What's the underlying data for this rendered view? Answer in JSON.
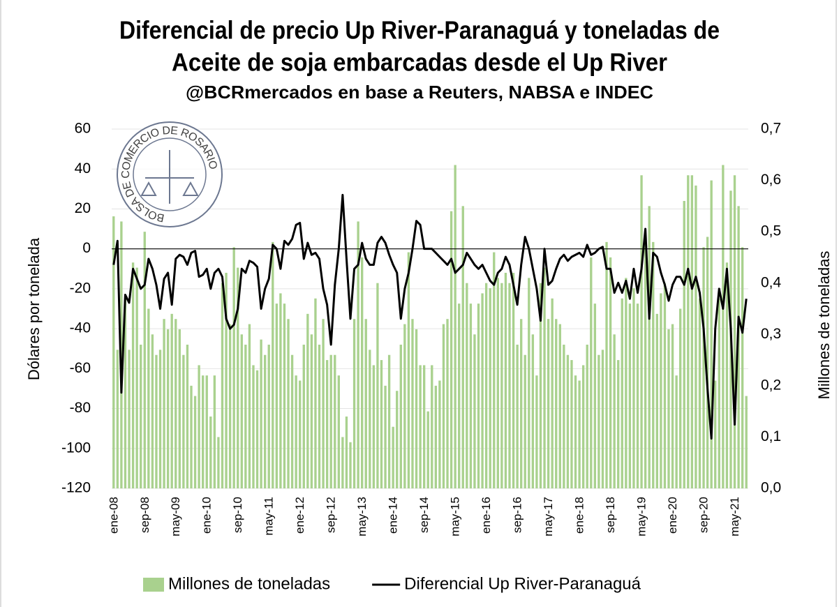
{
  "chart_data": {
    "type": "bar-line",
    "title": [
      "Diferencial de precio Up River-Paranaguá y toneladas de",
      "Aceite de soja embarcadas desde el Up River"
    ],
    "subtitle": "@BCRmercados en base a Reuters, NABSA e INDEC",
    "logo": "BOLSA DE COMERCIO DE ROSARIO",
    "ylabel": "Dólares por tonelada",
    "y2label": "Millones de toneladas",
    "categories": [
      "ene-08",
      null,
      null,
      null,
      null,
      null,
      null,
      null,
      "sep-08",
      null,
      null,
      null,
      null,
      null,
      null,
      null,
      "may-09",
      null,
      null,
      null,
      null,
      null,
      null,
      null,
      "ene-10",
      null,
      null,
      null,
      null,
      null,
      null,
      null,
      "sep-10",
      null,
      null,
      null,
      null,
      null,
      null,
      null,
      "may-11",
      null,
      null,
      null,
      null,
      null,
      null,
      null,
      "ene-12",
      null,
      null,
      null,
      null,
      null,
      null,
      null,
      "sep-12",
      null,
      null,
      null,
      null,
      null,
      null,
      null,
      "may-13",
      null,
      null,
      null,
      null,
      null,
      null,
      null,
      "ene-14",
      null,
      null,
      null,
      null,
      null,
      null,
      null,
      "sep-14",
      null,
      null,
      null,
      null,
      null,
      null,
      null,
      "may-15",
      null,
      null,
      null,
      null,
      null,
      null,
      null,
      "ene-16",
      null,
      null,
      null,
      null,
      null,
      null,
      null,
      "sep-16",
      null,
      null,
      null,
      null,
      null,
      null,
      null,
      "may-17",
      null,
      null,
      null,
      null,
      null,
      null,
      null,
      "ene-18",
      null,
      null,
      null,
      null,
      null,
      null,
      null,
      "sep-18",
      null,
      null,
      null,
      null,
      null,
      null,
      null,
      "may-19",
      null,
      null,
      null,
      null,
      null,
      null,
      null,
      "ene-20",
      null,
      null,
      null,
      null,
      null,
      null,
      null,
      "sep-20",
      null,
      null,
      null,
      null,
      null,
      null,
      null,
      "may-21",
      null,
      null,
      null
    ],
    "series": [
      {
        "name": "Millones de toneladas",
        "type": "bar",
        "axis": "y2",
        "color": "#a9d18e",
        "values": [
          0.53,
          0.27,
          0.52,
          0.37,
          0.27,
          0.44,
          0.43,
          0.28,
          0.5,
          0.35,
          0.3,
          0.26,
          0.27,
          0.33,
          0.31,
          0.34,
          0.33,
          0.31,
          0.26,
          0.28,
          0.2,
          0.18,
          0.24,
          0.22,
          0.22,
          0.14,
          0.22,
          0.1,
          0.4,
          0.42,
          0.32,
          0.47,
          0.43,
          0.3,
          0.28,
          0.32,
          0.24,
          0.23,
          0.29,
          0.26,
          0.28,
          0.48,
          0.36,
          0.38,
          0.36,
          0.33,
          0.26,
          0.22,
          0.21,
          0.28,
          0.34,
          0.3,
          0.37,
          0.28,
          0.33,
          0.25,
          0.26,
          0.26,
          0.22,
          0.1,
          0.14,
          0.09,
          0.33,
          0.52,
          0.45,
          0.33,
          0.27,
          0.24,
          0.4,
          0.25,
          0.2,
          0.26,
          0.12,
          0.19,
          0.28,
          0.32,
          0.46,
          0.33,
          0.31,
          0.24,
          0.24,
          0.15,
          0.24,
          0.2,
          0.21,
          0.32,
          0.33,
          0.54,
          0.63,
          0.36,
          0.55,
          0.4,
          0.36,
          0.3,
          0.36,
          0.38,
          0.4,
          0.39,
          0.46,
          0.41,
          0.4,
          0.42,
          0.4,
          0.42,
          0.28,
          0.33,
          0.26,
          0.41,
          0.3,
          0.22,
          0.4,
          0.43,
          0.33,
          0.37,
          0.33,
          0.32,
          0.28,
          0.26,
          0.25,
          0.22,
          0.21,
          0.24,
          0.28,
          0.45,
          0.36,
          0.26,
          0.27,
          0.48,
          0.45,
          0.3,
          0.25,
          0.37,
          0.41,
          0.36,
          0.39,
          0.36,
          0.61,
          0.48,
          0.55,
          0.48,
          0.34,
          0.38,
          0.4,
          0.31,
          0.32,
          0.22,
          0.35,
          0.56,
          0.61,
          0.61,
          0.59,
          0.37,
          0.47,
          0.49,
          0.6,
          0.21,
          0.37,
          0.63,
          0.44,
          0.58,
          0.61,
          0.55,
          0.47,
          0.18
        ]
      },
      {
        "name": "Diferencial Up River-Paranaguá",
        "type": "line",
        "axis": "y",
        "color": "#000000",
        "values": [
          -8,
          4,
          -72,
          -23,
          -27,
          -10,
          -15,
          -20,
          -18,
          -5,
          -10,
          -18,
          -30,
          -15,
          -12,
          -28,
          -5,
          -3,
          -4,
          -8,
          -2,
          -1,
          -14,
          -13,
          -10,
          -20,
          -12,
          -10,
          -14,
          -35,
          -40,
          -38,
          -30,
          -10,
          -12,
          -6,
          -7,
          -9,
          -30,
          -20,
          -15,
          2,
          0,
          -10,
          4,
          2,
          5,
          12,
          13,
          -5,
          3,
          -3,
          -2,
          -5,
          -20,
          -28,
          -48,
          -18,
          0,
          27,
          -5,
          -35,
          -10,
          -8,
          3,
          -5,
          -8,
          -8,
          3,
          6,
          3,
          -3,
          -8,
          -12,
          -35,
          -20,
          -12,
          0,
          14,
          12,
          0,
          0,
          0,
          -2,
          -4,
          -6,
          -8,
          -5,
          -12,
          -10,
          -8,
          -2,
          -5,
          -8,
          -10,
          -8,
          -12,
          -16,
          -18,
          -12,
          -10,
          -4,
          -8,
          -18,
          -28,
          -8,
          6,
          0,
          -10,
          -20,
          -36,
          0,
          -18,
          -16,
          -10,
          -5,
          -3,
          -6,
          -4,
          -3,
          -2,
          -4,
          2,
          -3,
          -2,
          0,
          1,
          -10,
          -10,
          -22,
          -17,
          -22,
          -16,
          -25,
          -10,
          -22,
          -10,
          10,
          -35,
          -2,
          -4,
          -12,
          -18,
          -26,
          -18,
          -14,
          -14,
          -18,
          -10,
          -20,
          -14,
          -22,
          -40,
          -70,
          -95,
          -40,
          -20,
          -30,
          -10,
          -40,
          -88,
          -34,
          -42,
          -25
        ]
      }
    ],
    "ylim": [
      -120,
      60
    ],
    "yticks": [
      -120,
      -100,
      -80,
      -60,
      -40,
      -20,
      0,
      20,
      40,
      60
    ],
    "y2lim": [
      0,
      0.7
    ],
    "y2ticks": [
      {
        "value": 0,
        "label": "0,0"
      },
      {
        "value": 0.1,
        "label": "0,1"
      },
      {
        "value": 0.2,
        "label": "0,2"
      },
      {
        "value": 0.3,
        "label": "0,3"
      },
      {
        "value": 0.4,
        "label": "0,4"
      },
      {
        "value": 0.5,
        "label": "0,5"
      },
      {
        "value": 0.6,
        "label": "0,6"
      },
      {
        "value": 0.7,
        "label": "0,7"
      }
    ],
    "grid": true,
    "legend": "bottom"
  }
}
